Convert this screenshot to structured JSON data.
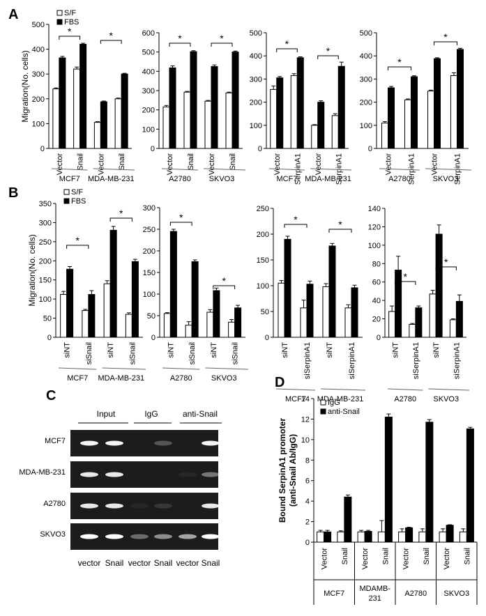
{
  "panel_letters": {
    "a": "A",
    "b": "B",
    "c": "C",
    "d": "D"
  },
  "chart_data": [
    {
      "id": "A1",
      "type": "bar",
      "title": "",
      "xlabel": "",
      "ylabel": "Migration(No. cells)",
      "ylim": [
        0,
        500
      ],
      "yticks": [
        0,
        100,
        200,
        300,
        400,
        500
      ],
      "categories": [
        "Vector",
        "Snail",
        "Vector",
        "Snail"
      ],
      "groups": [
        "MCF7",
        "MDA-MB-231"
      ],
      "legend": [
        "S/F",
        "FBS"
      ],
      "series": [
        {
          "name": "S/F",
          "values": [
            240,
            320,
            105,
            200
          ],
          "errors": [
            4,
            8,
            3,
            3
          ]
        },
        {
          "name": "FBS",
          "values": [
            365,
            420,
            188,
            300
          ],
          "errors": [
            6,
            4,
            3,
            3
          ]
        }
      ],
      "sig_labels": [
        "*",
        "*"
      ]
    },
    {
      "id": "A2",
      "type": "bar",
      "title": "",
      "xlabel": "",
      "ylabel": "",
      "ylim": [
        0,
        600
      ],
      "yticks": [
        0,
        100,
        200,
        300,
        400,
        500,
        600
      ],
      "categories": [
        "Vector",
        "Snail",
        "Vector",
        "Snail"
      ],
      "groups": [
        "A2780",
        "SKVO3"
      ],
      "series": [
        {
          "name": "S/F",
          "values": [
            215,
            292,
            245,
            288
          ],
          "errors": [
            8,
            4,
            4,
            4
          ]
        },
        {
          "name": "FBS",
          "values": [
            418,
            502,
            425,
            500
          ],
          "errors": [
            10,
            5,
            8,
            5
          ]
        }
      ],
      "sig_labels": [
        "*",
        "*"
      ]
    },
    {
      "id": "A3",
      "type": "bar",
      "title": "",
      "xlabel": "",
      "ylabel": "",
      "ylim": [
        0,
        500
      ],
      "yticks": [
        0,
        100,
        200,
        300,
        400,
        500
      ],
      "categories": [
        "Vector",
        "SerpinA1",
        "Vector",
        "SerpinA1"
      ],
      "groups": [
        "MCF7",
        "MDA-MB-231"
      ],
      "series": [
        {
          "name": "S/F",
          "values": [
            255,
            315,
            100,
            142
          ],
          "errors": [
            15,
            8,
            3,
            8
          ]
        },
        {
          "name": "FBS",
          "values": [
            305,
            392,
            200,
            355
          ],
          "errors": [
            6,
            4,
            6,
            18
          ]
        }
      ],
      "sig_labels": [
        "*",
        "*"
      ]
    },
    {
      "id": "A4",
      "type": "bar",
      "title": "",
      "xlabel": "",
      "ylabel": "",
      "ylim": [
        0,
        500
      ],
      "yticks": [
        0,
        100,
        200,
        300,
        400,
        500
      ],
      "categories": [
        "Vector",
        "SerpinA1",
        "Vector",
        "SerpinA1"
      ],
      "groups": [
        "A2780",
        "SKVO3"
      ],
      "series": [
        {
          "name": "S/F",
          "values": [
            110,
            210,
            248,
            315
          ],
          "errors": [
            6,
            4,
            4,
            12
          ]
        },
        {
          "name": "FBS",
          "values": [
            262,
            310,
            388,
            428
          ],
          "errors": [
            6,
            4,
            4,
            5
          ]
        }
      ],
      "sig_labels": [
        "*",
        "*"
      ]
    },
    {
      "id": "B1",
      "type": "bar",
      "title": "",
      "xlabel": "",
      "ylabel": "Migration(No. cells)",
      "ylim": [
        0,
        350
      ],
      "yticks": [
        0,
        50,
        100,
        150,
        200,
        250,
        300,
        350
      ],
      "categories": [
        "siNT",
        "siSnail",
        "siNT",
        "siSnail"
      ],
      "groups": [
        "MCF7",
        "MDA-MB-231"
      ],
      "legend": [
        "S/F",
        "FBS"
      ],
      "series": [
        {
          "name": "S/F",
          "values": [
            112,
            70,
            140,
            60
          ],
          "errors": [
            8,
            3,
            8,
            4
          ]
        },
        {
          "name": "FBS",
          "values": [
            178,
            112,
            280,
            198
          ],
          "errors": [
            7,
            10,
            10,
            6
          ]
        }
      ],
      "sig_labels": [
        "*",
        "*"
      ]
    },
    {
      "id": "B2",
      "type": "bar",
      "title": "",
      "xlabel": "",
      "ylabel": "",
      "ylim": [
        0,
        300
      ],
      "yticks": [
        0,
        50,
        100,
        150,
        200,
        250,
        300
      ],
      "categories": [
        "siNT",
        "siSnail",
        "siNT",
        "siSnail"
      ],
      "groups": [
        "A2780",
        "SKVO3"
      ],
      "series": [
        {
          "name": "S/F",
          "values": [
            55,
            28,
            58,
            35
          ],
          "errors": [
            2,
            8,
            6,
            6
          ]
        },
        {
          "name": "FBS",
          "values": [
            245,
            175,
            108,
            68
          ],
          "errors": [
            5,
            4,
            6,
            6
          ]
        }
      ],
      "sig_labels": [
        "*",
        "*"
      ]
    },
    {
      "id": "B3",
      "type": "bar",
      "title": "",
      "xlabel": "",
      "ylabel": "",
      "ylim": [
        0,
        250
      ],
      "yticks": [
        0,
        50,
        100,
        150,
        200,
        250
      ],
      "categories": [
        "siNT",
        "siSerpinA1",
        "siNT",
        "siSerpinA1"
      ],
      "groups": [
        "MCF7",
        "MDA-MB-231"
      ],
      "series": [
        {
          "name": "S/F",
          "values": [
            105,
            57,
            98,
            57
          ],
          "errors": [
            5,
            15,
            6,
            6
          ]
        },
        {
          "name": "FBS",
          "values": [
            190,
            103,
            177,
            96
          ],
          "errors": [
            6,
            6,
            5,
            5
          ]
        }
      ],
      "sig_labels": [
        "*",
        "*"
      ]
    },
    {
      "id": "B4",
      "type": "bar",
      "title": "",
      "xlabel": "",
      "ylabel": "",
      "ylim": [
        0,
        140
      ],
      "yticks": [
        0,
        20,
        40,
        60,
        80,
        100,
        120,
        140
      ],
      "categories": [
        "siNT",
        "siSerpinA1",
        "siNT",
        "siSerpinA1"
      ],
      "groups": [
        "A2780",
        "SKVO3"
      ],
      "series": [
        {
          "name": "S/F",
          "values": [
            28,
            14,
            47,
            19
          ],
          "errors": [
            6,
            1,
            4,
            1
          ]
        },
        {
          "name": "FBS",
          "values": [
            73,
            32,
            112,
            39
          ],
          "errors": [
            15,
            2,
            10,
            7
          ]
        }
      ],
      "sig_labels": [
        "*",
        "*"
      ]
    },
    {
      "id": "D",
      "type": "bar",
      "title": "",
      "xlabel": "",
      "ylabel": [
        "Bound SerpinA1 promoter",
        "(anti-Snail Ab/IgG)"
      ],
      "ylim": [
        0,
        14
      ],
      "yticks": [
        0,
        2,
        4,
        6,
        8,
        10,
        12,
        14
      ],
      "categories": [
        "Vector",
        "Snail",
        "Vector",
        "Snail",
        "Vector",
        "Snail",
        "Vector",
        "Snail"
      ],
      "groups": [
        "MCF7",
        "MDAMB-\n231",
        "A2780",
        "SKVO3"
      ],
      "legend": [
        "IgG",
        "anti-Snail"
      ],
      "series": [
        {
          "name": "IgG",
          "values": [
            1.0,
            1.0,
            1.0,
            1.0,
            1.0,
            1.0,
            1.0,
            1.0
          ],
          "errors": [
            0.15,
            0.1,
            0.15,
            1.1,
            0.3,
            0.3,
            0.3,
            0.3
          ]
        },
        {
          "name": "anti-Snail",
          "values": [
            1.0,
            4.4,
            1.05,
            12.2,
            1.4,
            11.7,
            1.65,
            11.05
          ],
          "errors": [
            0.15,
            0.2,
            0.1,
            0.3,
            0.05,
            0.25,
            0.05,
            0.15
          ]
        }
      ]
    }
  ],
  "gel": {
    "header": [
      "Input",
      "IgG",
      "anti-Snail"
    ],
    "rows": [
      "MCF7",
      "MDA-MB-231",
      "A2780",
      "SKVO3"
    ],
    "lanes": [
      "vector",
      "Snail",
      "vector",
      "Snail",
      "vector",
      "Snail"
    ],
    "band_intensity": [
      [
        0.95,
        0.95,
        0.0,
        0.25,
        0.0,
        0.95
      ],
      [
        0.9,
        0.9,
        0.0,
        0.0,
        0.05,
        0.4
      ],
      [
        0.9,
        0.9,
        0.05,
        0.12,
        0.0,
        0.9
      ],
      [
        1.0,
        1.0,
        0.35,
        0.5,
        0.6,
        1.0
      ]
    ],
    "background": "#1c1c1c",
    "band_color": "#ffffff"
  },
  "colors": {
    "sf": "#ffffff",
    "fbs": "#000000",
    "axis": "#000000",
    "divider": "#666666"
  }
}
